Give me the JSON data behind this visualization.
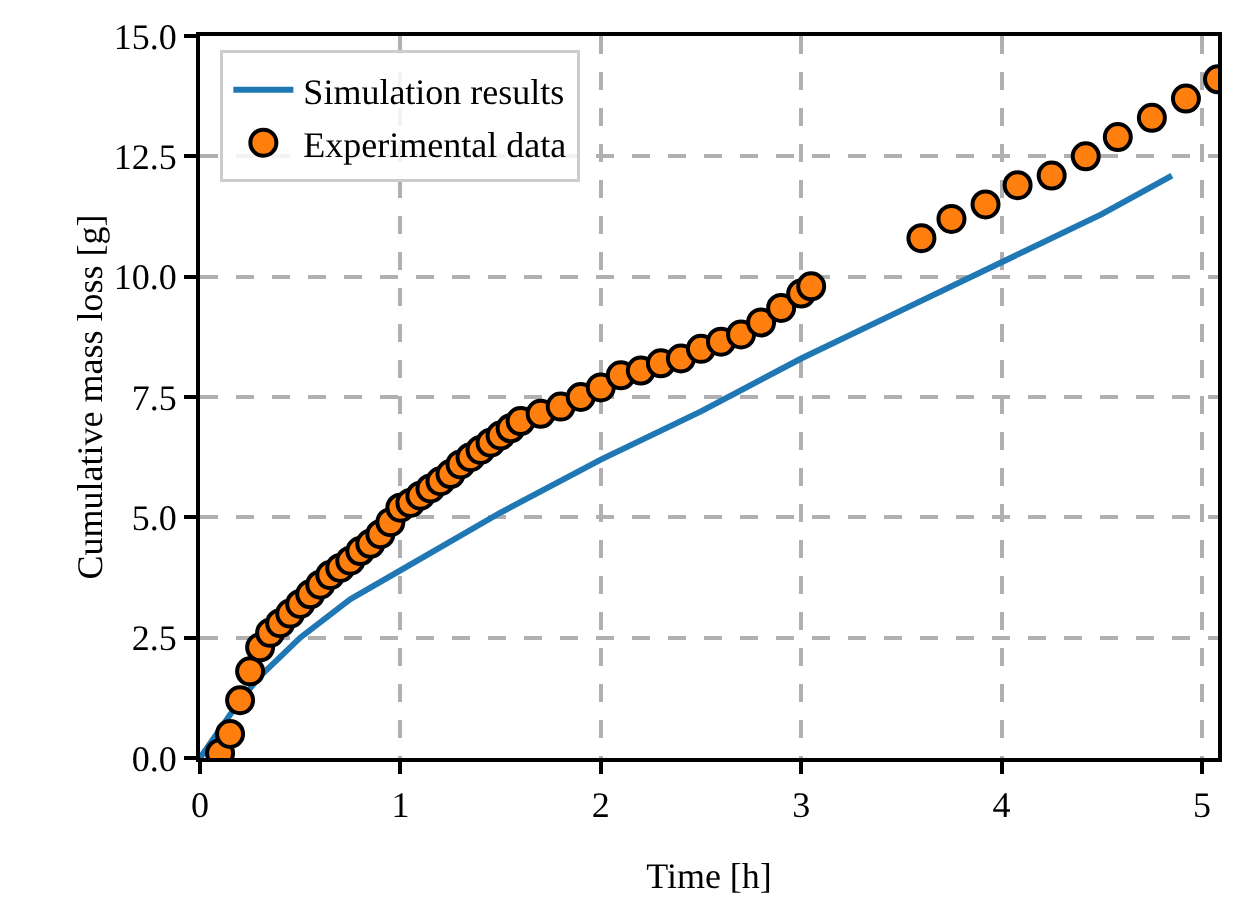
{
  "chart_data": {
    "type": "line",
    "xlabel": "Time [h]",
    "ylabel": "Cumulative mass loss [g]",
    "xlim": [
      0,
      5.08
    ],
    "xticks": [
      0,
      1,
      2,
      3,
      4,
      5
    ],
    "ylim": [
      0,
      15
    ],
    "yticks": [
      {
        "value": 0,
        "label": "0.0"
      },
      2.5,
      {
        "value": 5,
        "label": "5.0"
      },
      7.5,
      {
        "value": 10,
        "label": "10.0"
      },
      12.5,
      {
        "value": 15,
        "label": "15.0"
      }
    ],
    "grid": true,
    "legend": "top left",
    "series": [
      {
        "name": "Simulation results",
        "color": "#1f77b4",
        "x": [
          0,
          0.1,
          0.2,
          0.3,
          0.5,
          0.75,
          1.0,
          1.5,
          2.0,
          2.5,
          3.0,
          3.5,
          4.0,
          4.5,
          4.85
        ],
        "values": [
          0,
          0.6,
          1.2,
          1.7,
          2.5,
          3.3,
          3.9,
          5.1,
          6.2,
          7.2,
          8.3,
          9.3,
          10.3,
          11.3,
          12.1
        ]
      },
      {
        "name": "Experimental data",
        "type": "scatter",
        "marker": "circle",
        "color": "#ff7f0e",
        "x": [
          0.1,
          0.15,
          0.2,
          0.25,
          0.3,
          0.35,
          0.4,
          0.45,
          0.5,
          0.55,
          0.6,
          0.65,
          0.7,
          0.75,
          0.8,
          0.85,
          0.9,
          0.95,
          1.0,
          1.05,
          1.1,
          1.15,
          1.2,
          1.25,
          1.3,
          1.35,
          1.4,
          1.45,
          1.5,
          1.55,
          1.6,
          1.7,
          1.8,
          1.9,
          2.0,
          2.1,
          2.2,
          2.3,
          2.4,
          2.5,
          2.6,
          2.7,
          2.8,
          2.9,
          3.0,
          3.05,
          3.6,
          3.75,
          3.92,
          4.08,
          4.25,
          4.42,
          4.58,
          4.75,
          4.92,
          5.08
        ],
        "values": [
          0.1,
          0.5,
          1.2,
          1.8,
          2.3,
          2.6,
          2.8,
          3.0,
          3.2,
          3.4,
          3.6,
          3.8,
          3.95,
          4.1,
          4.3,
          4.45,
          4.65,
          4.9,
          5.2,
          5.3,
          5.45,
          5.6,
          5.75,
          5.9,
          6.1,
          6.25,
          6.4,
          6.55,
          6.7,
          6.85,
          7.0,
          7.15,
          7.3,
          7.5,
          7.7,
          7.95,
          8.05,
          8.2,
          8.3,
          8.5,
          8.65,
          8.8,
          9.05,
          9.35,
          9.65,
          9.8,
          10.8,
          11.2,
          11.5,
          11.9,
          12.1,
          12.5,
          12.9,
          13.3,
          13.7,
          14.1
        ]
      }
    ]
  }
}
